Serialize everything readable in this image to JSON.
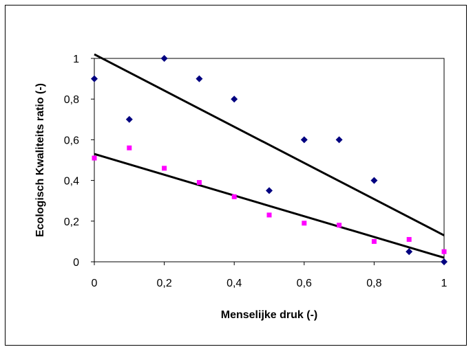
{
  "chart_data": {
    "type": "scatter",
    "xlabel": "Menselijke druk (-)",
    "ylabel": "Ecologisch Kwaliteits ratio (-)",
    "xlim": [
      0,
      1
    ],
    "ylim": [
      0,
      1
    ],
    "x_ticks": [
      "0",
      "0,2",
      "0,4",
      "0,6",
      "0,8",
      "1"
    ],
    "y_ticks": [
      "0",
      "0,2",
      "0,4",
      "0,6",
      "0,8",
      "1"
    ],
    "grid": false,
    "legend": "none",
    "series": [
      {
        "color": "#000080",
        "marker": "diamond",
        "x": [
          0,
          0.1,
          0.2,
          0.3,
          0.4,
          0.5,
          0.6,
          0.7,
          0.8,
          0.9,
          1.0
        ],
        "y": [
          0.9,
          0.7,
          1.0,
          0.9,
          0.8,
          0.35,
          0.6,
          0.6,
          0.4,
          0.05,
          0.0
        ],
        "trendline": {
          "y_at_xmin": 1.02,
          "y_at_xmax": 0.13
        }
      },
      {
        "color": "#ff00ff",
        "marker": "square",
        "x": [
          0,
          0.1,
          0.2,
          0.3,
          0.4,
          0.5,
          0.6,
          0.7,
          0.8,
          0.9,
          1.0
        ],
        "y": [
          0.51,
          0.56,
          0.46,
          0.39,
          0.32,
          0.23,
          0.19,
          0.18,
          0.1,
          0.11,
          0.05
        ],
        "trendline": {
          "y_at_xmin": 0.53,
          "y_at_xmax": 0.02
        }
      }
    ]
  }
}
